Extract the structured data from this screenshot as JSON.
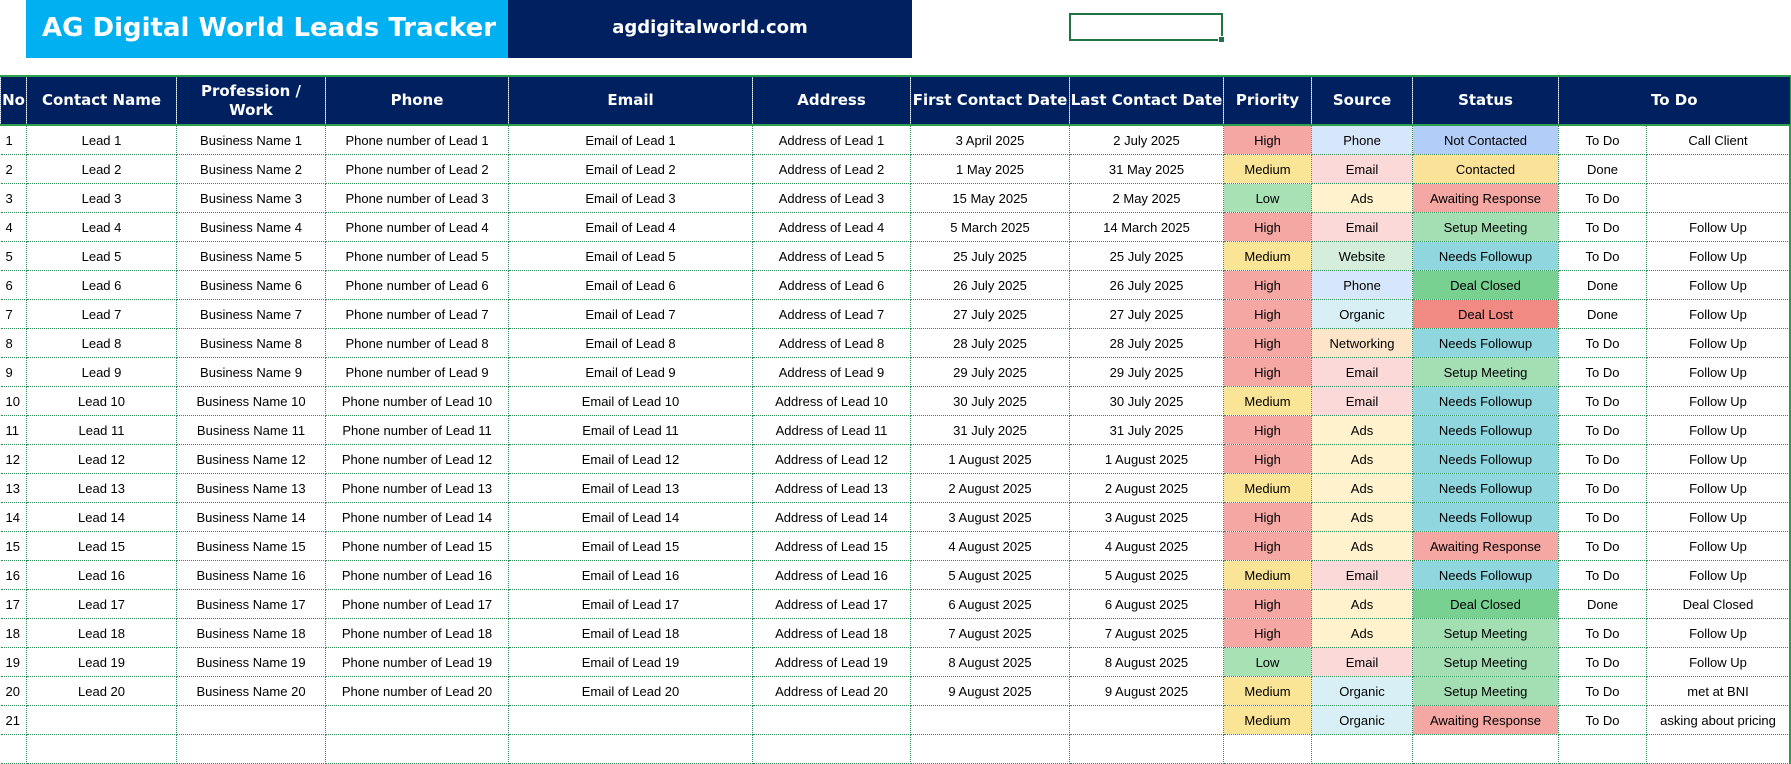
{
  "header": {
    "title": "AG Digital World Leads Tracker",
    "website": "agdigitalworld.com"
  },
  "colors": {
    "title_bg": "#00b0f0",
    "header_bg": "#002060",
    "grid": "#2e9e4f",
    "priority": {
      "High": "#f4a7a3",
      "Medium": "#fae596",
      "Low": "#a8e2b4"
    },
    "source": {
      "Phone": "#d6e7fb",
      "Email": "#fad9d8",
      "Ads": "#fff2cc",
      "Website": "#d4eedb",
      "Organic": "#d8f0f5",
      "Networking": "#fde5c9"
    },
    "status": {
      "Not Contacted": "#b2cdf7",
      "Contacted": "#fbe299",
      "Awaiting Response": "#f4a7a3",
      "Setup Meeting": "#a3dfb2",
      "Needs Followup": "#8fd6de",
      "Deal Closed": "#78d091",
      "Deal Lost": "#f08a83"
    }
  },
  "columns": [
    "No",
    "Contact Name",
    "Profession / Work",
    "Phone",
    "Email",
    "Address",
    "First Contact Date",
    "Last Contact Date",
    "Priority",
    "Source",
    "Status",
    "To Do"
  ],
  "rows": [
    {
      "no": "1",
      "name": "Lead 1",
      "work": "Business Name 1",
      "phone": "Phone number of Lead 1",
      "email": "Email of Lead 1",
      "address": "Address of Lead 1",
      "first": "3 April 2025",
      "last": "2 July 2025",
      "priority": "High",
      "source": "Phone",
      "status": "Not Contacted",
      "todo": "To Do",
      "note": "Call Client"
    },
    {
      "no": "2",
      "name": "Lead 2",
      "work": "Business Name 2",
      "phone": "Phone number of Lead 2",
      "email": "Email of Lead 2",
      "address": "Address of Lead 2",
      "first": "1 May 2025",
      "last": "31 May 2025",
      "priority": "Medium",
      "source": "Email",
      "status": "Contacted",
      "todo": "Done",
      "note": ""
    },
    {
      "no": "3",
      "name": "Lead 3",
      "work": "Business Name 3",
      "phone": "Phone number of Lead 3",
      "email": "Email of Lead 3",
      "address": "Address of Lead 3",
      "first": "15 May 2025",
      "last": "2 May 2025",
      "priority": "Low",
      "source": "Ads",
      "status": "Awaiting Response",
      "todo": "To Do",
      "note": ""
    },
    {
      "no": "4",
      "name": "Lead 4",
      "work": "Business Name 4",
      "phone": "Phone number of Lead 4",
      "email": "Email of Lead 4",
      "address": "Address of Lead 4",
      "first": "5 March 2025",
      "last": "14 March 2025",
      "priority": "High",
      "source": "Email",
      "status": "Setup Meeting",
      "todo": "To Do",
      "note": "Follow Up"
    },
    {
      "no": "5",
      "name": "Lead 5",
      "work": "Business Name 5",
      "phone": "Phone number of Lead 5",
      "email": "Email of Lead 5",
      "address": "Address of Lead 5",
      "first": "25 July 2025",
      "last": "25 July 2025",
      "priority": "Medium",
      "source": "Website",
      "status": "Needs Followup",
      "todo": "To Do",
      "note": "Follow Up"
    },
    {
      "no": "6",
      "name": "Lead 6",
      "work": "Business Name 6",
      "phone": "Phone number of Lead 6",
      "email": "Email of Lead 6",
      "address": "Address of Lead 6",
      "first": "26 July 2025",
      "last": "26 July 2025",
      "priority": "High",
      "source": "Phone",
      "status": "Deal Closed",
      "todo": "Done",
      "note": "Follow Up"
    },
    {
      "no": "7",
      "name": "Lead 7",
      "work": "Business Name 7",
      "phone": "Phone number of Lead 7",
      "email": "Email of Lead 7",
      "address": "Address of Lead 7",
      "first": "27 July 2025",
      "last": "27 July 2025",
      "priority": "High",
      "source": "Organic",
      "status": "Deal Lost",
      "todo": "Done",
      "note": "Follow Up"
    },
    {
      "no": "8",
      "name": "Lead 8",
      "work": "Business Name 8",
      "phone": "Phone number of Lead 8",
      "email": "Email of Lead 8",
      "address": "Address of Lead 8",
      "first": "28 July 2025",
      "last": "28 July 2025",
      "priority": "High",
      "source": "Networking",
      "status": "Needs Followup",
      "todo": "To Do",
      "note": "Follow Up"
    },
    {
      "no": "9",
      "name": "Lead 9",
      "work": "Business Name 9",
      "phone": "Phone number of Lead 9",
      "email": "Email of Lead 9",
      "address": "Address of Lead 9",
      "first": "29 July 2025",
      "last": "29 July 2025",
      "priority": "High",
      "source": "Email",
      "status": "Setup Meeting",
      "todo": "To Do",
      "note": "Follow Up"
    },
    {
      "no": "10",
      "name": "Lead 10",
      "work": "Business Name 10",
      "phone": "Phone number of Lead 10",
      "email": "Email of Lead 10",
      "address": "Address of Lead 10",
      "first": "30 July 2025",
      "last": "30 July 2025",
      "priority": "Medium",
      "source": "Email",
      "status": "Needs Followup",
      "todo": "To Do",
      "note": "Follow Up"
    },
    {
      "no": "11",
      "name": "Lead 11",
      "work": "Business Name 11",
      "phone": "Phone number of Lead 11",
      "email": "Email of Lead 11",
      "address": "Address of Lead 11",
      "first": "31 July 2025",
      "last": "31 July 2025",
      "priority": "High",
      "source": "Ads",
      "status": "Needs Followup",
      "todo": "To Do",
      "note": "Follow Up"
    },
    {
      "no": "12",
      "name": "Lead 12",
      "work": "Business Name 12",
      "phone": "Phone number of Lead 12",
      "email": "Email of Lead 12",
      "address": "Address of Lead 12",
      "first": "1 August 2025",
      "last": "1 August 2025",
      "priority": "High",
      "source": "Ads",
      "status": "Needs Followup",
      "todo": "To Do",
      "note": "Follow Up"
    },
    {
      "no": "13",
      "name": "Lead 13",
      "work": "Business Name 13",
      "phone": "Phone number of Lead 13",
      "email": "Email of Lead 13",
      "address": "Address of Lead 13",
      "first": "2 August 2025",
      "last": "2 August 2025",
      "priority": "Medium",
      "source": "Ads",
      "status": "Needs Followup",
      "todo": "To Do",
      "note": "Follow Up"
    },
    {
      "no": "14",
      "name": "Lead 14",
      "work": "Business Name 14",
      "phone": "Phone number of Lead 14",
      "email": "Email of Lead 14",
      "address": "Address of Lead 14",
      "first": "3 August 2025",
      "last": "3 August 2025",
      "priority": "High",
      "source": "Ads",
      "status": "Needs Followup",
      "todo": "To Do",
      "note": "Follow Up"
    },
    {
      "no": "15",
      "name": "Lead 15",
      "work": "Business Name 15",
      "phone": "Phone number of Lead 15",
      "email": "Email of Lead 15",
      "address": "Address of Lead 15",
      "first": "4 August 2025",
      "last": "4 August 2025",
      "priority": "High",
      "source": "Ads",
      "status": "Awaiting Response",
      "todo": "To Do",
      "note": "Follow Up"
    },
    {
      "no": "16",
      "name": "Lead 16",
      "work": "Business Name 16",
      "phone": "Phone number of Lead 16",
      "email": "Email of Lead 16",
      "address": "Address of Lead 16",
      "first": "5 August 2025",
      "last": "5 August 2025",
      "priority": "Medium",
      "source": "Email",
      "status": "Needs Followup",
      "todo": "To Do",
      "note": "Follow Up"
    },
    {
      "no": "17",
      "name": "Lead 17",
      "work": "Business Name 17",
      "phone": "Phone number of Lead 17",
      "email": "Email of Lead 17",
      "address": "Address of Lead 17",
      "first": "6 August 2025",
      "last": "6 August 2025",
      "priority": "High",
      "source": "Ads",
      "status": "Deal Closed",
      "todo": "Done",
      "note": "Deal Closed"
    },
    {
      "no": "18",
      "name": "Lead 18",
      "work": "Business Name 18",
      "phone": "Phone number of Lead 18",
      "email": "Email of Lead 18",
      "address": "Address of Lead 18",
      "first": "7 August 2025",
      "last": "7 August 2025",
      "priority": "High",
      "source": "Ads",
      "status": "Setup Meeting",
      "todo": "To Do",
      "note": "Follow Up"
    },
    {
      "no": "19",
      "name": "Lead 19",
      "work": "Business Name 19",
      "phone": "Phone number of Lead 19",
      "email": "Email of Lead 19",
      "address": "Address of Lead 19",
      "first": "8 August 2025",
      "last": "8 August 2025",
      "priority": "Low",
      "source": "Email",
      "status": "Setup Meeting",
      "todo": "To Do",
      "note": "Follow Up"
    },
    {
      "no": "20",
      "name": "Lead 20",
      "work": "Business Name 20",
      "phone": "Phone number of Lead 20",
      "email": "Email of Lead 20",
      "address": "Address of Lead 20",
      "first": "9 August 2025",
      "last": "9 August 2025",
      "priority": "Medium",
      "source": "Organic",
      "status": "Setup Meeting",
      "todo": "To Do",
      "note": "met at BNI"
    },
    {
      "no": "21",
      "name": "",
      "work": "",
      "phone": "",
      "email": "",
      "address": "",
      "first": "",
      "last": "",
      "priority": "Medium",
      "source": "Organic",
      "status": "Awaiting Response",
      "todo": "To Do",
      "note": "asking about pricing"
    },
    {
      "no": "",
      "name": "",
      "work": "",
      "phone": "",
      "email": "",
      "address": "",
      "first": "",
      "last": "",
      "priority": "",
      "source": "",
      "status": "",
      "todo": "",
      "note": ""
    }
  ]
}
